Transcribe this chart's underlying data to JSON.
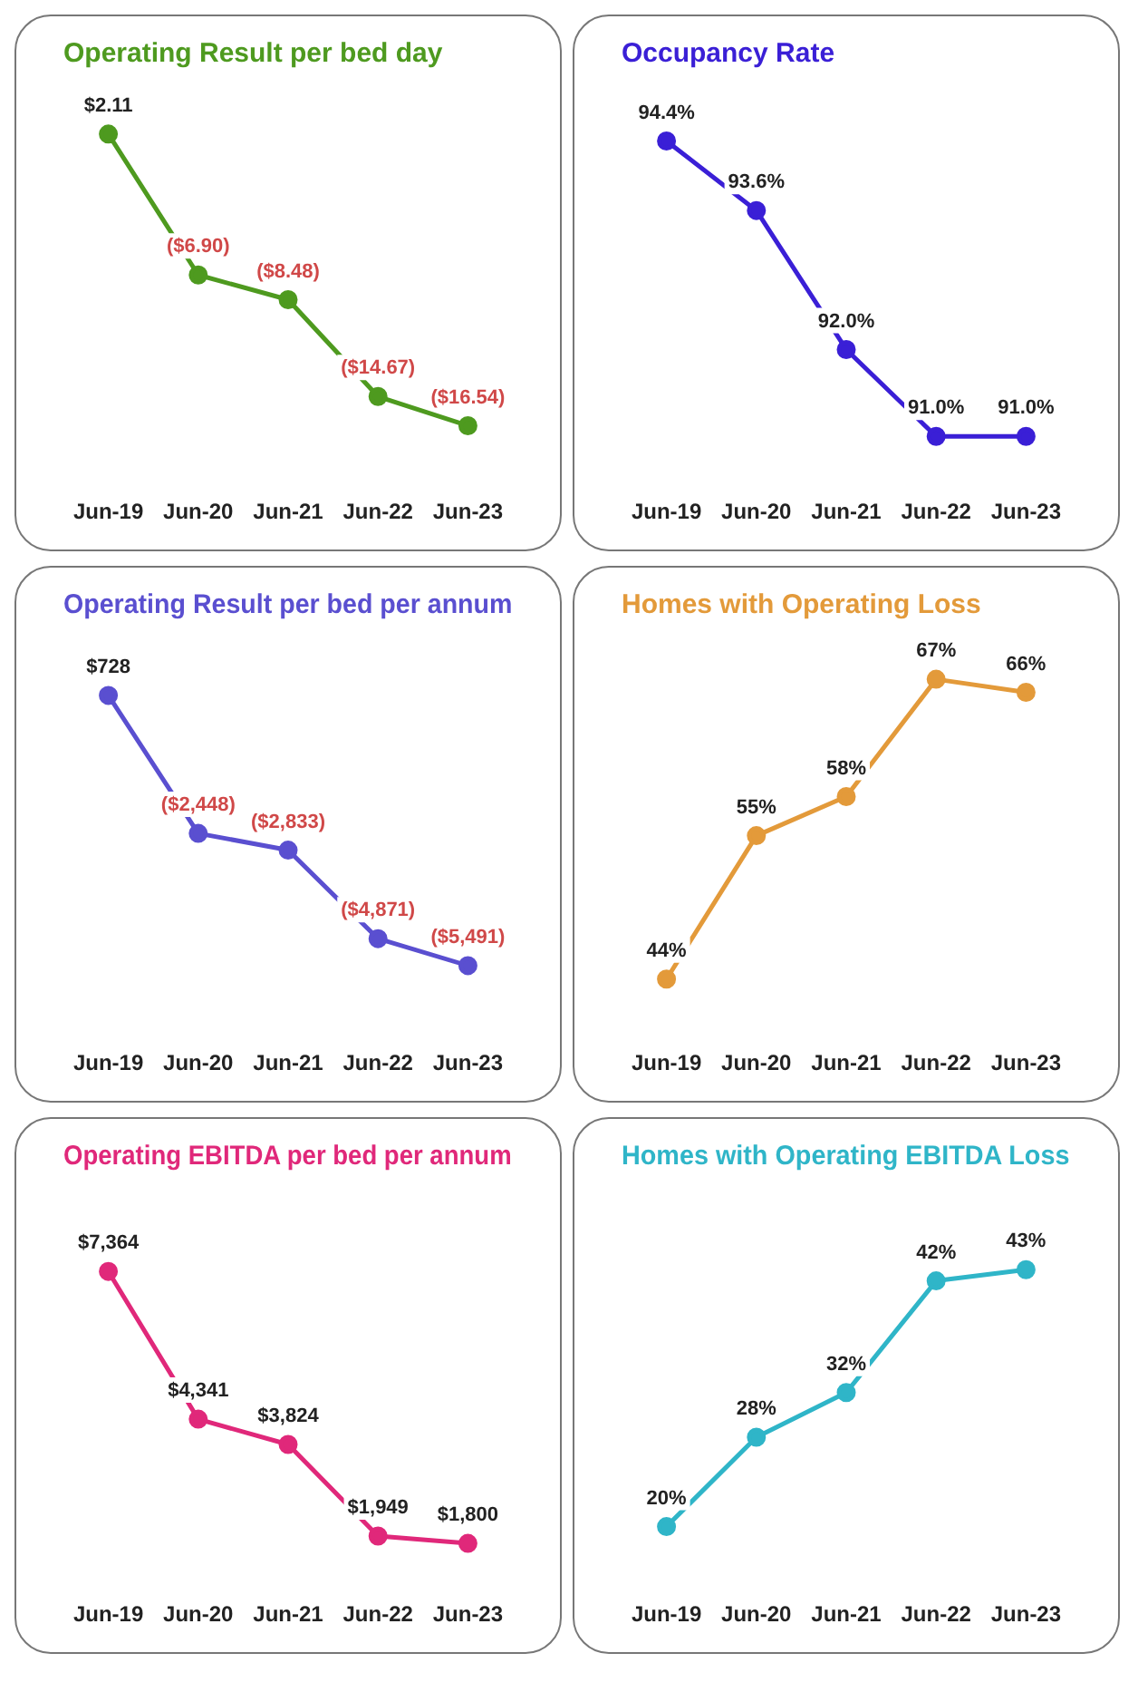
{
  "chart_data": [
    {
      "type": "line",
      "title": "Operating Result per bed day",
      "categories": [
        "Jun-19",
        "Jun-20",
        "Jun-21",
        "Jun-22",
        "Jun-23"
      ],
      "tick_labels": "x",
      "marker": "circle",
      "series": [
        {
          "color": "#4e9a1f",
          "values": [
            2.11,
            -6.9,
            -8.48,
            -14.67,
            -16.54
          ],
          "value_labels": [
            "$2.11",
            "($6.90)",
            "($8.48)",
            "($14.67)",
            "($16.54)"
          ]
        }
      ]
    },
    {
      "type": "line",
      "title": "Occupancy Rate",
      "categories": [
        "Jun-19",
        "Jun-20",
        "Jun-21",
        "Jun-22",
        "Jun-23"
      ],
      "tick_labels": "x",
      "marker": "circle",
      "series": [
        {
          "color": "#3a1fd6",
          "values": [
            94.4,
            93.6,
            92.0,
            91.0,
            91.0
          ],
          "value_labels": [
            "94.4%",
            "93.6%",
            "92.0%",
            "91.0%",
            "91.0%"
          ]
        }
      ]
    },
    {
      "type": "line",
      "title": "Operating Result per bed per annum",
      "categories": [
        "Jun-19",
        "Jun-20",
        "Jun-21",
        "Jun-22",
        "Jun-23"
      ],
      "tick_labels": "x",
      "marker": "circle",
      "series": [
        {
          "color": "#5a4fd0",
          "values": [
            728,
            -2448,
            -2833,
            -4871,
            -5491
          ],
          "value_labels": [
            "$728",
            "($2,448)",
            "($2,833)",
            "($4,871)",
            "($5,491)"
          ]
        }
      ]
    },
    {
      "type": "line",
      "title": "Homes with Operating Loss",
      "categories": [
        "Jun-19",
        "Jun-20",
        "Jun-21",
        "Jun-22",
        "Jun-23"
      ],
      "tick_labels": "x",
      "marker": "circle",
      "series": [
        {
          "color": "#e39a3a",
          "values": [
            44,
            55,
            58,
            67,
            66
          ],
          "value_labels": [
            "44%",
            "55%",
            "58%",
            "67%",
            "66%"
          ]
        }
      ]
    },
    {
      "type": "line",
      "title": "Operating EBITDA per bed per annum",
      "categories": [
        "Jun-19",
        "Jun-20",
        "Jun-21",
        "Jun-22",
        "Jun-23"
      ],
      "tick_labels": "x",
      "marker": "circle",
      "series": [
        {
          "color": "#e0287a",
          "values": [
            7364,
            4341,
            3824,
            1949,
            1800
          ],
          "value_labels": [
            "$7,364",
            "$4,341",
            "$3,824",
            "$1,949",
            "$1,800"
          ]
        }
      ]
    },
    {
      "type": "line",
      "title": "Homes with Operating EBITDA Loss",
      "categories": [
        "Jun-19",
        "Jun-20",
        "Jun-21",
        "Jun-22",
        "Jun-23"
      ],
      "tick_labels": "x",
      "marker": "circle",
      "series": [
        {
          "color": "#2fb5c8",
          "values": [
            20,
            28,
            32,
            42,
            43
          ],
          "value_labels": [
            "20%",
            "28%",
            "32%",
            "42%",
            "43%"
          ]
        }
      ]
    }
  ]
}
